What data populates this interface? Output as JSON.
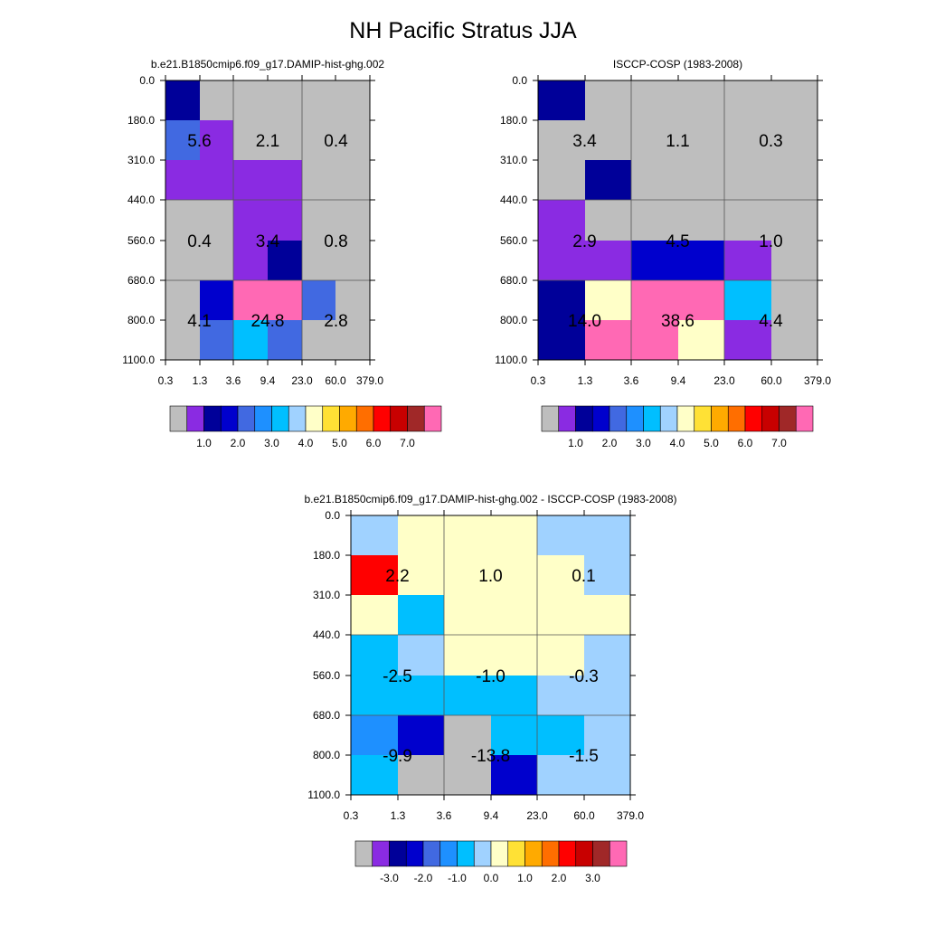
{
  "title": "NH Pacific Stratus JJA",
  "colors": {
    "plot_grid": "#555555",
    "frame": "#000000",
    "cell_text": "#000000"
  },
  "chart_data": [
    {
      "type": "heatmap",
      "name": "model",
      "title": "b.e21.B1850cmip6.f09_g17.DAMIP-hist-ghg.002",
      "x_tick_labels": [
        "0.3",
        "1.3",
        "3.6",
        "9.4",
        "23.0",
        "60.0",
        "379.0"
      ],
      "y_tick_labels": [
        "0.0",
        "180.0",
        "310.0",
        "440.0",
        "560.0",
        "680.0",
        "800.0",
        "1100.0"
      ],
      "grid": true,
      "color_rows": [
        [
          "#000099",
          "#BEBEBE",
          "#BEBEBE",
          "#BEBEBE",
          "#BEBEBE",
          "#BEBEBE"
        ],
        [
          "#4169E1",
          "#8A2BE2",
          "#BEBEBE",
          "#BEBEBE",
          "#BEBEBE",
          "#BEBEBE"
        ],
        [
          "#8A2BE2",
          "#8A2BE2",
          "#8A2BE2",
          "#8A2BE2",
          "#BEBEBE",
          "#BEBEBE"
        ],
        [
          "#BEBEBE",
          "#BEBEBE",
          "#8A2BE2",
          "#8A2BE2",
          "#BEBEBE",
          "#BEBEBE"
        ],
        [
          "#BEBEBE",
          "#BEBEBE",
          "#8A2BE2",
          "#000099",
          "#BEBEBE",
          "#BEBEBE"
        ],
        [
          "#BEBEBE",
          "#0000CD",
          "#FF69B4",
          "#FF69B4",
          "#4169E1",
          "#BEBEBE"
        ],
        [
          "#BEBEBE",
          "#4169E1",
          "#00BFFF",
          "#4169E1",
          "#BEBEBE",
          "#BEBEBE"
        ]
      ],
      "totals": [
        {
          "label": "5.6",
          "col_block": 0,
          "row_block": 0
        },
        {
          "label": "2.1",
          "col_block": 1,
          "row_block": 0
        },
        {
          "label": "0.4",
          "col_block": 2,
          "row_block": 0
        },
        {
          "label": "0.4",
          "col_block": 0,
          "row_block": 1
        },
        {
          "label": "3.4",
          "col_block": 1,
          "row_block": 1
        },
        {
          "label": "0.8",
          "col_block": 2,
          "row_block": 1
        },
        {
          "label": "4.1",
          "col_block": 0,
          "row_block": 2
        },
        {
          "label": "24.8",
          "col_block": 1,
          "row_block": 2
        },
        {
          "label": "2.8",
          "col_block": 2,
          "row_block": 2
        }
      ],
      "colorbar": {
        "colors": [
          "#BEBEBE",
          "#8A2BE2",
          "#000099",
          "#0000CD",
          "#4169E1",
          "#1E90FF",
          "#00BFFF",
          "#A0D2FF",
          "#FFFFC8",
          "#FFE135",
          "#FFAA00",
          "#FF6E00",
          "#FF0000",
          "#C80000",
          "#A02828",
          "#FF69B4"
        ],
        "labels": [
          "1.0",
          "2.0",
          "3.0",
          "4.0",
          "5.0",
          "6.0",
          "7.0"
        ],
        "label_boundaries": [
          2,
          4,
          6,
          8,
          10,
          12,
          14
        ]
      }
    },
    {
      "type": "heatmap",
      "name": "obs",
      "title": "ISCCP-COSP (1983-2008)",
      "x_tick_labels": [
        "0.3",
        "1.3",
        "3.6",
        "9.4",
        "23.0",
        "60.0",
        "379.0"
      ],
      "y_tick_labels": [
        "0.0",
        "180.0",
        "310.0",
        "440.0",
        "560.0",
        "680.0",
        "800.0",
        "1100.0"
      ],
      "grid": true,
      "color_rows": [
        [
          "#000099",
          "#BEBEBE",
          "#BEBEBE",
          "#BEBEBE",
          "#BEBEBE",
          "#BEBEBE"
        ],
        [
          "#BEBEBE",
          "#BEBEBE",
          "#BEBEBE",
          "#BEBEBE",
          "#BEBEBE",
          "#BEBEBE"
        ],
        [
          "#BEBEBE",
          "#000099",
          "#BEBEBE",
          "#BEBEBE",
          "#BEBEBE",
          "#BEBEBE"
        ],
        [
          "#8A2BE2",
          "#BEBEBE",
          "#BEBEBE",
          "#BEBEBE",
          "#BEBEBE",
          "#BEBEBE"
        ],
        [
          "#8A2BE2",
          "#8A2BE2",
          "#0000CD",
          "#0000CD",
          "#8A2BE2",
          "#BEBEBE"
        ],
        [
          "#000099",
          "#FFFFC8",
          "#FF69B4",
          "#FF69B4",
          "#00BFFF",
          "#BEBEBE"
        ],
        [
          "#000099",
          "#FF69B4",
          "#FF69B4",
          "#FFFFC8",
          "#8A2BE2",
          "#BEBEBE"
        ]
      ],
      "totals": [
        {
          "label": "3.4",
          "col_block": 0,
          "row_block": 0
        },
        {
          "label": "1.1",
          "col_block": 1,
          "row_block": 0
        },
        {
          "label": "0.3",
          "col_block": 2,
          "row_block": 0
        },
        {
          "label": "2.9",
          "col_block": 0,
          "row_block": 1
        },
        {
          "label": "4.5",
          "col_block": 1,
          "row_block": 1
        },
        {
          "label": "1.0",
          "col_block": 2,
          "row_block": 1
        },
        {
          "label": "14.0",
          "col_block": 0,
          "row_block": 2
        },
        {
          "label": "38.6",
          "col_block": 1,
          "row_block": 2
        },
        {
          "label": "4.4",
          "col_block": 2,
          "row_block": 2
        }
      ],
      "colorbar": {
        "colors": [
          "#BEBEBE",
          "#8A2BE2",
          "#000099",
          "#0000CD",
          "#4169E1",
          "#1E90FF",
          "#00BFFF",
          "#A0D2FF",
          "#FFFFC8",
          "#FFE135",
          "#FFAA00",
          "#FF6E00",
          "#FF0000",
          "#C80000",
          "#A02828",
          "#FF69B4"
        ],
        "labels": [
          "1.0",
          "2.0",
          "3.0",
          "4.0",
          "5.0",
          "6.0",
          "7.0"
        ],
        "label_boundaries": [
          2,
          4,
          6,
          8,
          10,
          12,
          14
        ]
      }
    },
    {
      "type": "heatmap",
      "name": "diff",
      "title": "b.e21.B1850cmip6.f09_g17.DAMIP-hist-ghg.002 - ISCCP-COSP (1983-2008)",
      "x_tick_labels": [
        "0.3",
        "1.3",
        "3.6",
        "9.4",
        "23.0",
        "60.0",
        "379.0"
      ],
      "y_tick_labels": [
        "0.0",
        "180.0",
        "310.0",
        "440.0",
        "560.0",
        "680.0",
        "800.0",
        "1100.0"
      ],
      "grid": true,
      "color_rows": [
        [
          "#A0D2FF",
          "#FFFFC8",
          "#FFFFC8",
          "#FFFFC8",
          "#A0D2FF",
          "#A0D2FF"
        ],
        [
          "#FF0000",
          "#FFFFC8",
          "#FFFFC8",
          "#FFFFC8",
          "#FFFFC8",
          "#A0D2FF"
        ],
        [
          "#FFFFC8",
          "#00BFFF",
          "#FFFFC8",
          "#FFFFC8",
          "#FFFFC8",
          "#FFFFC8"
        ],
        [
          "#00BFFF",
          "#A0D2FF",
          "#FFFFC8",
          "#FFFFC8",
          "#FFFFC8",
          "#A0D2FF"
        ],
        [
          "#00BFFF",
          "#00BFFF",
          "#00BFFF",
          "#00BFFF",
          "#A0D2FF",
          "#A0D2FF"
        ],
        [
          "#1E90FF",
          "#0000CD",
          "#BEBEBE",
          "#00BFFF",
          "#00BFFF",
          "#A0D2FF"
        ],
        [
          "#00BFFF",
          "#BEBEBE",
          "#BEBEBE",
          "#0000CD",
          "#A0D2FF",
          "#A0D2FF"
        ]
      ],
      "totals": [
        {
          "label": "2.2",
          "col_block": 0,
          "row_block": 0
        },
        {
          "label": "1.0",
          "col_block": 1,
          "row_block": 0
        },
        {
          "label": "0.1",
          "col_block": 2,
          "row_block": 0
        },
        {
          "label": "-2.5",
          "col_block": 0,
          "row_block": 1
        },
        {
          "label": "-1.0",
          "col_block": 1,
          "row_block": 1
        },
        {
          "label": "-0.3",
          "col_block": 2,
          "row_block": 1
        },
        {
          "label": "-9.9",
          "col_block": 0,
          "row_block": 2
        },
        {
          "label": "-13.8",
          "col_block": 1,
          "row_block": 2
        },
        {
          "label": "-1.5",
          "col_block": 2,
          "row_block": 2
        }
      ],
      "colorbar": {
        "colors": [
          "#BEBEBE",
          "#8A2BE2",
          "#000099",
          "#0000CD",
          "#4169E1",
          "#1E90FF",
          "#00BFFF",
          "#A0D2FF",
          "#FFFFC8",
          "#FFE135",
          "#FFAA00",
          "#FF6E00",
          "#FF0000",
          "#C80000",
          "#A02828",
          "#FF69B4"
        ],
        "labels": [
          "-3.0",
          "-2.0",
          "-1.0",
          "0.0",
          "1.0",
          "2.0",
          "3.0"
        ],
        "label_boundaries": [
          2,
          4,
          6,
          8,
          10,
          12,
          14
        ]
      }
    }
  ]
}
